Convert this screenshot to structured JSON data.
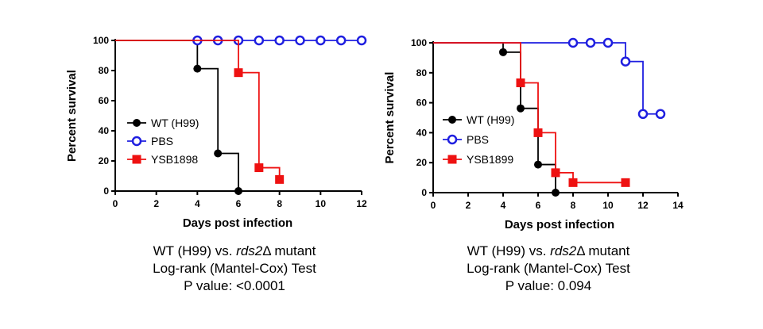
{
  "chart_data": [
    {
      "type": "line",
      "step": true,
      "xlabel": "Days post infection",
      "ylabel": "Percent survival",
      "xlim": [
        0,
        12
      ],
      "ylim": [
        0,
        100
      ],
      "xticks": [
        "0",
        "2",
        "4",
        "6",
        "8",
        "10",
        "12"
      ],
      "yticks": [
        "0",
        "20",
        "40",
        "60",
        "80",
        "100"
      ],
      "legend_position": "center-left",
      "series": [
        {
          "name": "WT (H99)",
          "color": "#000000",
          "marker": "filled-circle",
          "x": [
            0,
            4,
            5,
            6
          ],
          "y": [
            100,
            81.25,
            25,
            0
          ]
        },
        {
          "name": "PBS",
          "color": "#1f1fe0",
          "marker": "open-circle",
          "x": [
            4,
            5,
            6,
            7,
            8,
            9,
            10,
            11,
            12
          ],
          "y": [
            100,
            100,
            100,
            100,
            100,
            100,
            100,
            100,
            100
          ]
        },
        {
          "name": "YSB1898",
          "color": "#ee1111",
          "marker": "filled-square",
          "x": [
            0,
            6,
            7,
            8
          ],
          "y": [
            100,
            78.6,
            15.5,
            7.7
          ]
        }
      ]
    },
    {
      "type": "line",
      "step": true,
      "xlabel": "Days post infection",
      "ylabel": "Percent survival",
      "xlim": [
        0,
        14
      ],
      "ylim": [
        0,
        100
      ],
      "xticks": [
        "0",
        "2",
        "4",
        "6",
        "8",
        "10",
        "12",
        "14"
      ],
      "yticks": [
        "0",
        "20",
        "40",
        "60",
        "80",
        "100"
      ],
      "legend_position": "bottom-left",
      "series": [
        {
          "name": "WT (H99)",
          "color": "#000000",
          "marker": "filled-circle",
          "x": [
            0,
            4,
            5,
            6,
            7
          ],
          "y": [
            100,
            93.75,
            56.25,
            18.75,
            0
          ]
        },
        {
          "name": "PBS",
          "color": "#1f1fe0",
          "marker": "open-circle",
          "x": [
            0,
            8,
            9,
            10,
            11,
            12,
            13
          ],
          "y": [
            100,
            100,
            100,
            100,
            87.5,
            52.5,
            52.5
          ]
        },
        {
          "name": "YSB1899",
          "color": "#ee1111",
          "marker": "filled-square",
          "x": [
            0,
            5,
            6,
            7,
            8,
            11
          ],
          "y": [
            100,
            73.3,
            40,
            13.3,
            6.7,
            6.7
          ]
        }
      ]
    }
  ],
  "captions": {
    "left": {
      "line1_prefix": "WT (H99) vs. ",
      "line1_gene": "rds2",
      "line1_suffix": "Δ mutant",
      "line2": "Log-rank (Mantel-Cox) Test",
      "line3": "P value: <0.0001"
    },
    "right": {
      "line1_prefix": "WT (H99) vs. ",
      "line1_gene": "rds2",
      "line1_suffix": "Δ mutant",
      "line2": "Log-rank (Mantel-Cox) Test",
      "line3": "P value: 0.094"
    }
  }
}
